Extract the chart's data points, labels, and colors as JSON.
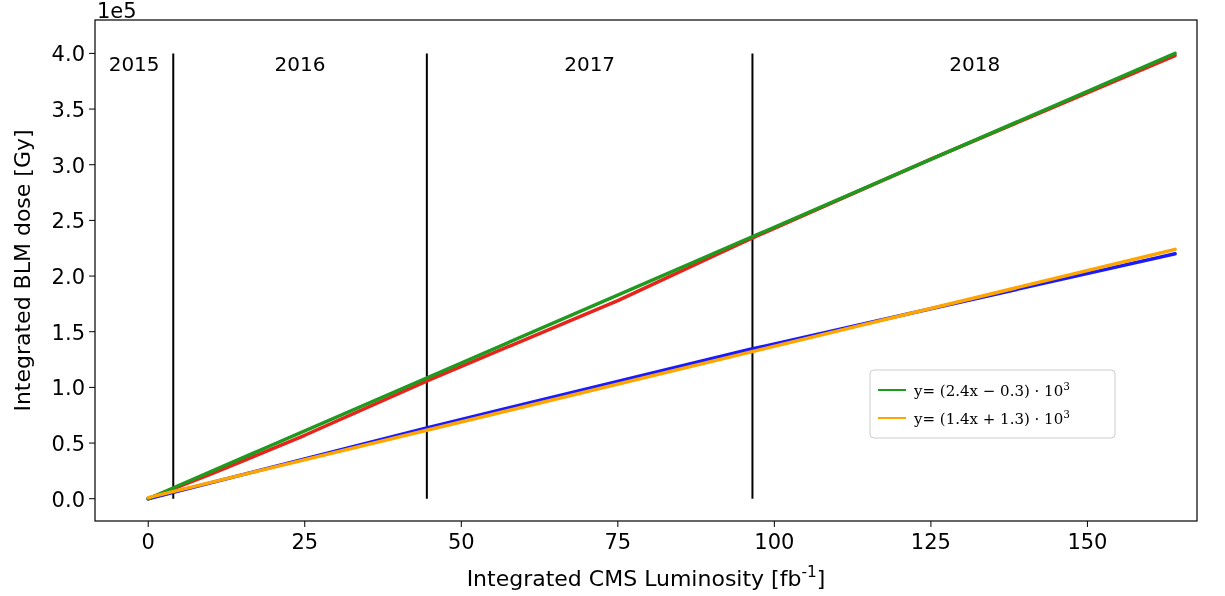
{
  "chart_data": {
    "type": "line",
    "xlabel": "Integrated CMS Luminosity [fb$^{-1}$]",
    "ylabel": "Integrated BLM dose [Gy]",
    "xlim": [
      -8.5,
      167.5
    ],
    "xticks": [
      0,
      25,
      50,
      75,
      100,
      125,
      150
    ],
    "ylim": [
      -0.2,
      4.3
    ],
    "yticks": [
      {
        "value": 0,
        "label": "0.0"
      },
      {
        "value": 0.5,
        "label": "0.5"
      },
      {
        "value": 1,
        "label": "1.0"
      },
      {
        "value": 1.5,
        "label": "1.5"
      },
      {
        "value": 2,
        "label": "2.0"
      },
      {
        "value": 2.5,
        "label": "2.5"
      },
      {
        "value": 3,
        "label": "3.0"
      },
      {
        "value": 3.5,
        "label": "3.5"
      },
      {
        "value": 4,
        "label": "4.0"
      }
    ],
    "series": [
      {
        "color": "#e8231c",
        "x": [
          0,
          10,
          25,
          45,
          75,
          96,
          125,
          164
        ],
        "values": [
          0,
          0.22,
          0.57,
          1.07,
          1.78,
          2.33,
          3.05,
          3.98
        ]
      },
      {
        "color": "#1a1aff",
        "x": [
          0,
          44,
          96,
          164
        ],
        "values": [
          0,
          0.63,
          1.34,
          2.2
        ]
      },
      {
        "name": "y= (2.4x − 0.3) · 10$^{3}$",
        "color": "#1f9a1f",
        "x": [
          0,
          164
        ],
        "values": [
          0,
          4.0
        ]
      },
      {
        "name": "y= (1.4x + 1.3) · 10$^{3}$",
        "color": "#ffa500",
        "x": [
          0,
          164
        ],
        "values": [
          0.01,
          2.24
        ]
      }
    ],
    "ref_lines": [
      {
        "axis": "x",
        "value": 4,
        "color": "#000000"
      },
      {
        "axis": "x",
        "value": 44.5,
        "color": "#000000"
      },
      {
        "axis": "x",
        "value": 96.5,
        "color": "#000000"
      }
    ],
    "annotations": [
      "1e5",
      "2015",
      "2016",
      "2017",
      "2018"
    ],
    "legend": "right",
    "grid": false
  }
}
